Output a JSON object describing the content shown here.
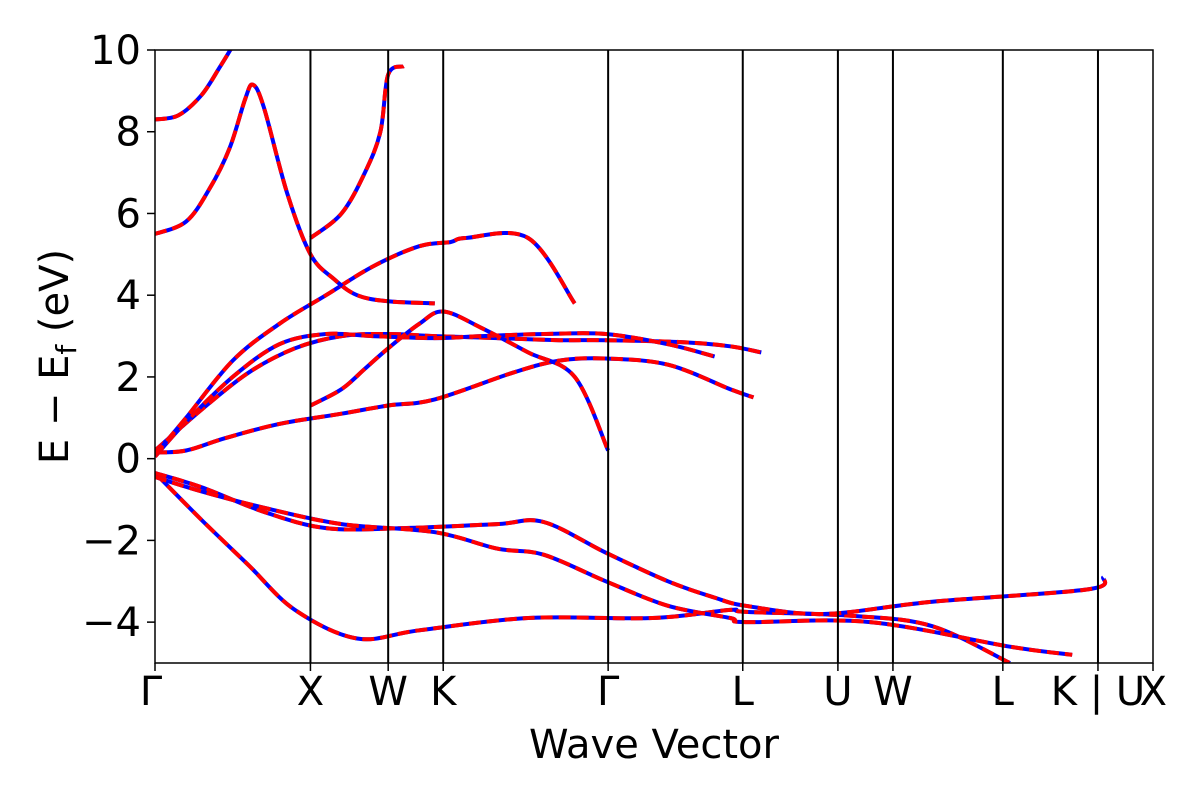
{
  "chart_data": {
    "type": "line",
    "xlabel": "Wave Vector",
    "ylabel": "E − E",
    "ylabel_sub": "f",
    "ylabel_unit": " (eV)",
    "ylim": [
      -5,
      10
    ],
    "yticks": [
      {
        "value": -4,
        "label": "−4"
      },
      {
        "value": -2,
        "label": "−2"
      },
      {
        "value": 0,
        "label": "0"
      },
      {
        "value": 2,
        "label": "2"
      },
      {
        "value": 4,
        "label": "4"
      },
      {
        "value": 6,
        "label": "6"
      },
      {
        "value": 8,
        "label": "8"
      },
      {
        "value": 10,
        "label": "10"
      }
    ],
    "kpath_labels": [
      "Γ",
      "X",
      "W",
      "K",
      "Γ",
      "L",
      "U",
      "W",
      "L",
      "K | U",
      "X"
    ],
    "kpath_positions": [
      0,
      1.0,
      1.5,
      1.854,
      2.915,
      3.781,
      4.393,
      4.747,
      5.454,
      6.066,
      6.42
    ],
    "grid": false,
    "colors": {
      "series_a": "#ff0000",
      "series_b": "#0000ff"
    },
    "bands": [
      [
        [
          0,
          -0.35
        ],
        [
          0.3,
          -1.5
        ],
        [
          0.6,
          -2.6
        ],
        [
          0.9,
          -3.7
        ],
        [
          1.3,
          -4.4
        ],
        [
          1.7,
          -4.2
        ],
        [
          2.4,
          -3.9
        ],
        [
          3.2,
          -3.9
        ],
        [
          3.7,
          -3.7
        ],
        [
          3.8,
          -3.75
        ],
        [
          4.5,
          -3.85
        ],
        [
          5.0,
          -4.1
        ],
        [
          5.5,
          -5.0
        ]
      ],
      [
        [
          0,
          -0.35
        ],
        [
          0.3,
          -0.7
        ],
        [
          0.7,
          -1.3
        ],
        [
          1.1,
          -1.7
        ],
        [
          1.6,
          -1.7
        ],
        [
          2.2,
          -1.6
        ],
        [
          2.5,
          -1.55
        ],
        [
          2.9,
          -2.3
        ],
        [
          3.3,
          -3.0
        ],
        [
          3.6,
          -3.4
        ],
        [
          3.8,
          -3.6
        ],
        [
          4.3,
          -3.8
        ],
        [
          5.0,
          -3.5
        ],
        [
          6.0,
          -3.2
        ],
        [
          6.1,
          -2.9
        ]
      ],
      [
        [
          0,
          -0.45
        ],
        [
          0.3,
          -0.8
        ],
        [
          0.7,
          -1.2
        ],
        [
          1.2,
          -1.6
        ],
        [
          1.8,
          -1.8
        ],
        [
          2.2,
          -2.2
        ],
        [
          2.5,
          -2.35
        ],
        [
          2.9,
          -3.0
        ],
        [
          3.3,
          -3.6
        ],
        [
          3.7,
          -3.9
        ],
        [
          3.8,
          -4.0
        ],
        [
          4.6,
          -4.0
        ],
        [
          5.5,
          -4.6
        ],
        [
          5.9,
          -4.8
        ]
      ],
      [
        [
          0,
          0.15
        ],
        [
          0.2,
          0.2
        ],
        [
          0.45,
          0.5
        ],
        [
          0.8,
          0.85
        ],
        [
          1.2,
          1.1
        ],
        [
          1.5,
          1.3
        ],
        [
          1.8,
          1.45
        ],
        [
          2.3,
          2.1
        ],
        [
          2.6,
          2.4
        ],
        [
          2.9,
          2.45
        ],
        [
          3.3,
          2.3
        ],
        [
          3.7,
          1.7
        ],
        [
          3.85,
          1.5
        ]
      ],
      [
        [
          0,
          0.2
        ],
        [
          0.3,
          1.2
        ],
        [
          0.6,
          2.1
        ],
        [
          0.9,
          2.7
        ],
        [
          1.2,
          3.0
        ],
        [
          1.5,
          3.05
        ],
        [
          1.8,
          3.0
        ],
        [
          2.2,
          2.95
        ],
        [
          2.6,
          2.9
        ],
        [
          2.9,
          2.9
        ],
        [
          3.4,
          2.85
        ],
        [
          3.7,
          2.75
        ],
        [
          3.9,
          2.6
        ]
      ],
      [
        [
          0,
          0.05
        ],
        [
          0.2,
          0.9
        ],
        [
          0.5,
          2.0
        ],
        [
          0.8,
          2.8
        ],
        [
          1.1,
          3.05
        ],
        [
          1.4,
          3.0
        ],
        [
          1.8,
          2.95
        ],
        [
          2.1,
          3.0
        ],
        [
          2.5,
          3.05
        ],
        [
          2.9,
          3.05
        ],
        [
          3.3,
          2.8
        ],
        [
          3.6,
          2.5
        ]
      ],
      [
        [
          0,
          0.1
        ],
        [
          0.2,
          1.0
        ],
        [
          0.5,
          2.4
        ],
        [
          0.8,
          3.3
        ],
        [
          1.1,
          4.0
        ],
        [
          1.4,
          4.7
        ],
        [
          1.7,
          5.2
        ],
        [
          1.9,
          5.3
        ],
        [
          2.0,
          5.4
        ],
        [
          2.4,
          5.4
        ],
        [
          2.7,
          3.8
        ]
      ],
      [
        [
          0,
          5.5
        ],
        [
          0.2,
          5.8
        ],
        [
          0.35,
          6.6
        ],
        [
          0.48,
          7.6
        ],
        [
          0.58,
          8.8
        ],
        [
          0.63,
          9.15
        ],
        [
          0.7,
          8.6
        ],
        [
          0.85,
          6.5
        ],
        [
          1.0,
          5.0
        ],
        [
          1.15,
          4.4
        ],
        [
          1.3,
          4.0
        ],
        [
          1.5,
          3.85
        ],
        [
          1.8,
          3.8
        ]
      ],
      [
        [
          0,
          8.3
        ],
        [
          0.15,
          8.4
        ],
        [
          0.3,
          8.9
        ],
        [
          0.42,
          9.6
        ],
        [
          0.5,
          10.1
        ]
      ],
      [
        [
          1.0,
          5.4
        ],
        [
          1.2,
          6.0
        ],
        [
          1.35,
          7.0
        ],
        [
          1.45,
          8.0
        ],
        [
          1.5,
          9.4
        ],
        [
          1.6,
          9.6
        ]
      ],
      [
        [
          1.0,
          1.3
        ],
        [
          1.2,
          1.7
        ],
        [
          1.35,
          2.2
        ],
        [
          1.5,
          2.7
        ],
        [
          1.7,
          3.3
        ],
        [
          1.854,
          3.6
        ],
        [
          2.1,
          3.2
        ],
        [
          2.4,
          2.6
        ],
        [
          2.7,
          2.0
        ],
        [
          2.915,
          0.2
        ]
      ]
    ]
  }
}
